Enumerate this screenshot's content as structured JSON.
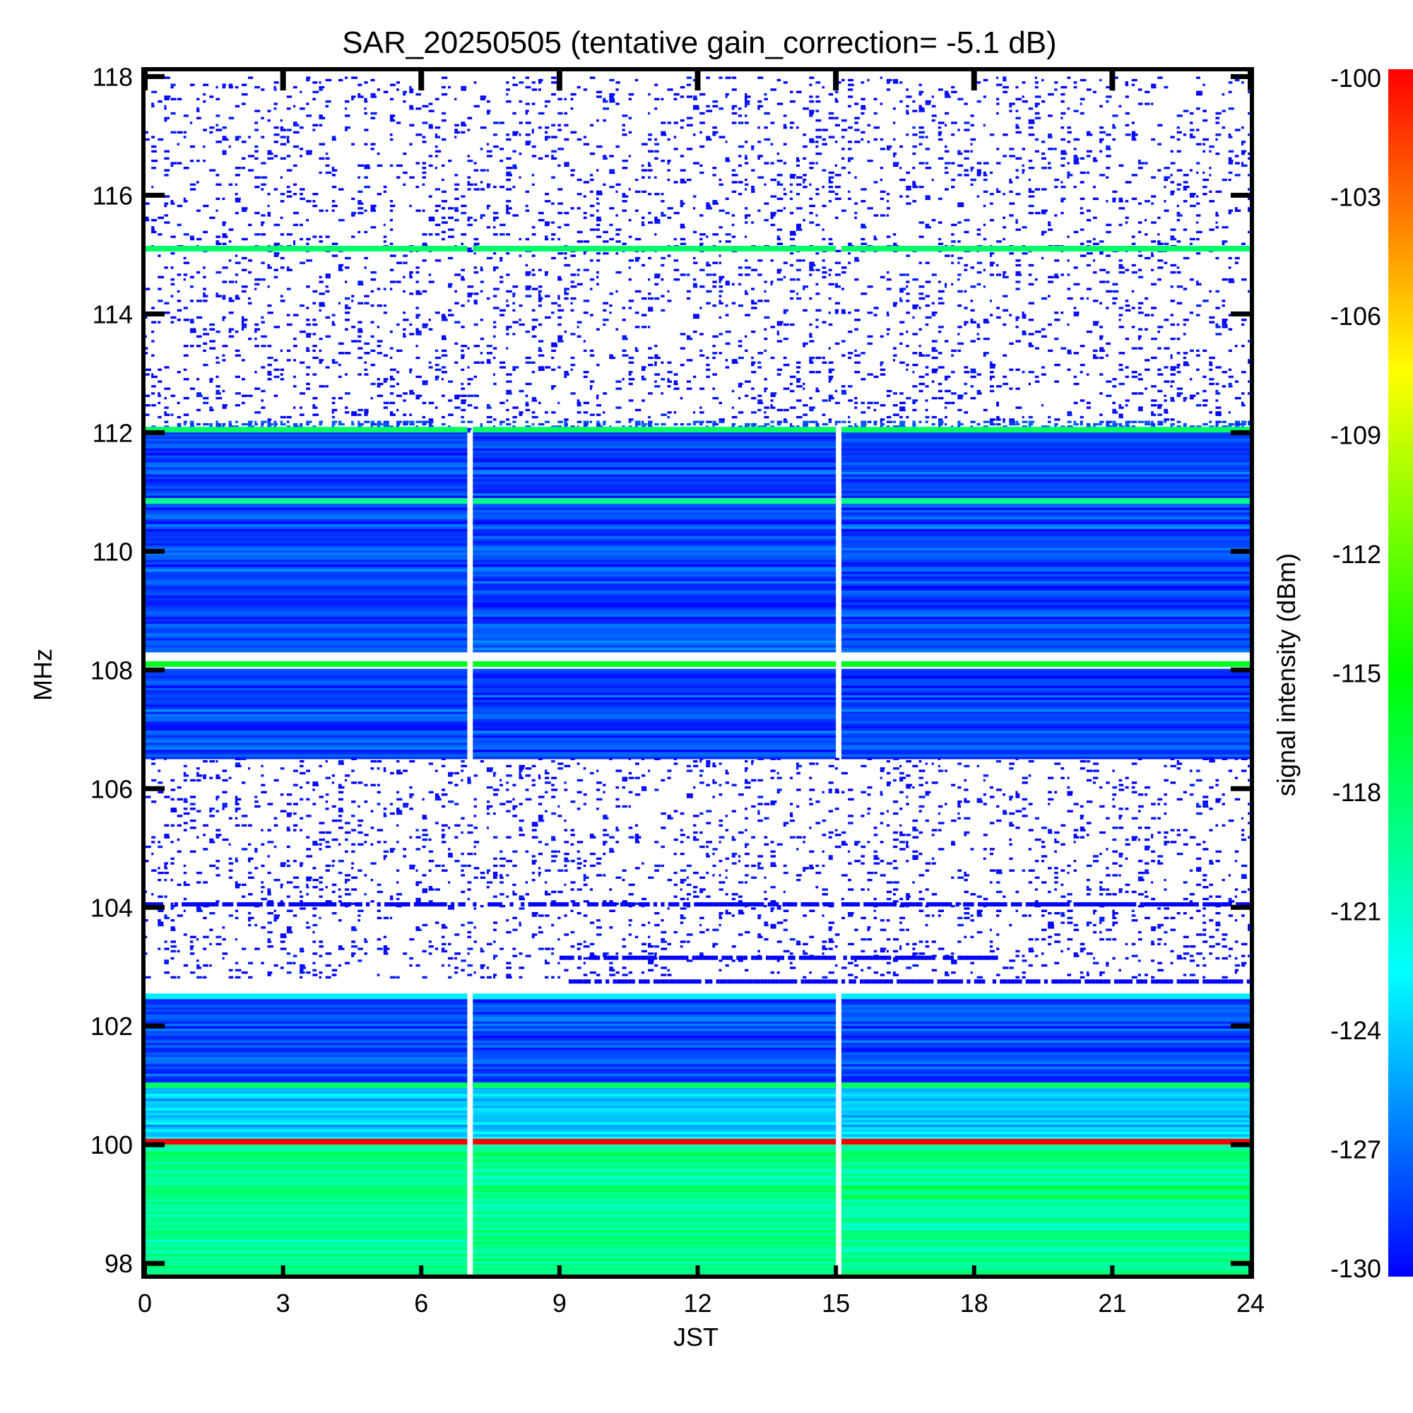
{
  "chart_data": {
    "type": "heatmap",
    "title": "SAR_20250505 (tentative gain_correction= -5.1 dB)",
    "xlabel": "JST",
    "ylabel": "MHz",
    "xlim": [
      0,
      24
    ],
    "ylim": [
      97.8,
      118.1
    ],
    "x_ticks": [
      "0",
      "3",
      "6",
      "9",
      "12",
      "15",
      "18",
      "21",
      "24"
    ],
    "y_ticks": [
      "98",
      "100",
      "102",
      "104",
      "106",
      "108",
      "110",
      "112",
      "114",
      "116",
      "118"
    ],
    "colorbar": {
      "label": "signal intensity (dBm)",
      "range": [
        -130,
        -100
      ],
      "ticks": [
        "-100",
        "-103",
        "-106",
        "-109",
        "-112",
        "-115",
        "-118",
        "-121",
        "-124",
        "-127",
        "-130"
      ],
      "colors": [
        "#0000ff",
        "#00ffff",
        "#00ff00",
        "#ffff00",
        "#ff0000"
      ]
    },
    "data_gaps_jst": [
      7.0,
      15.0
    ],
    "frequency_bands": [
      {
        "from": 112.2,
        "to": 118.0,
        "level_dbm": -131,
        "coverage": "sparse"
      },
      {
        "from": 112.0,
        "to": 112.2,
        "level_dbm": -129,
        "coverage": "dense"
      },
      {
        "from": 108.3,
        "to": 112.0,
        "level_dbm": -128,
        "coverage": "full"
      },
      {
        "from": 106.5,
        "to": 108.0,
        "level_dbm": -128,
        "coverage": "full"
      },
      {
        "from": 102.8,
        "to": 106.5,
        "level_dbm": -131,
        "coverage": "sparse"
      },
      {
        "from": 101.0,
        "to": 102.5,
        "level_dbm": -128,
        "coverage": "full"
      },
      {
        "from": 100.1,
        "to": 101.0,
        "level_dbm": -124,
        "coverage": "full"
      },
      {
        "from": 97.8,
        "to": 100.0,
        "level_dbm": -119,
        "coverage": "full"
      }
    ],
    "strong_lines": [
      {
        "freq_mhz": 115.1,
        "level_dbm": -118
      },
      {
        "freq_mhz": 112.05,
        "level_dbm": -118
      },
      {
        "freq_mhz": 110.85,
        "level_dbm": -119
      },
      {
        "freq_mhz": 108.1,
        "level_dbm": -116
      },
      {
        "freq_mhz": 102.5,
        "level_dbm": -123
      },
      {
        "freq_mhz": 101.0,
        "level_dbm": -118
      },
      {
        "freq_mhz": 100.05,
        "level_dbm": -100
      }
    ],
    "notes_intermittent_lines": [
      {
        "freq_mhz": 104.05,
        "level_dbm": -130
      },
      {
        "freq_mhz": 103.15,
        "level_dbm": -130,
        "from_jst": 9.0,
        "to_jst": 18.5
      },
      {
        "freq_mhz": 102.75,
        "level_dbm": -130,
        "from_jst": 9.2,
        "to_jst": 24
      }
    ]
  }
}
